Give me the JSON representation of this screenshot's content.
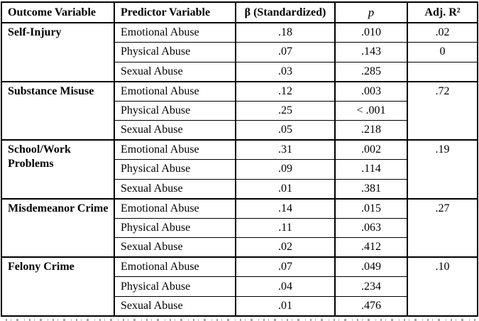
{
  "table": {
    "headers": {
      "outcome": "Outcome Variable",
      "predictor": "Predictor Variable",
      "beta": "β (Standardized)",
      "p": "p",
      "adj_r2": "Adj. R²"
    },
    "sections": [
      {
        "outcome": "Self-Injury",
        "rows": [
          {
            "predictor": "Emotional Abuse",
            "beta": ".18",
            "p": ".010",
            "adj_r2": ".02"
          },
          {
            "predictor": "Physical Abuse",
            "beta": ".07",
            "p": ".143",
            "adj_r2": "0"
          },
          {
            "predictor": "Sexual Abuse",
            "beta": ".03",
            "p": ".285",
            "adj_r2": ""
          }
        ]
      },
      {
        "outcome": "Substance Misuse",
        "adj_r2": ".72",
        "rows": [
          {
            "predictor": "Emotional Abuse",
            "beta": ".12",
            "p": ".003"
          },
          {
            "predictor": "Physical Abuse",
            "beta": ".25",
            "p": "< .001"
          },
          {
            "predictor": "Sexual Abuse",
            "beta": ".05",
            "p": ".218"
          }
        ]
      },
      {
        "outcome": "School/Work Problems",
        "adj_r2": ".19",
        "rows": [
          {
            "predictor": "Emotional Abuse",
            "beta": ".31",
            "p": ".002"
          },
          {
            "predictor": "Physical Abuse",
            "beta": ".09",
            "p": ".114"
          },
          {
            "predictor": "Sexual Abuse",
            "beta": ".01",
            "p": ".381"
          }
        ]
      },
      {
        "outcome": "Misdemeanor Crime",
        "adj_r2": ".27",
        "rows": [
          {
            "predictor": "Emotional Abuse",
            "beta": ".14",
            "p": ".015"
          },
          {
            "predictor": "Physical Abuse",
            "beta": ".11",
            "p": ".063"
          },
          {
            "predictor": "Sexual Abuse",
            "beta": ".02",
            "p": ".412"
          }
        ]
      },
      {
        "outcome": "Felony Crime",
        "adj_r2": ".10",
        "rows": [
          {
            "predictor": "Emotional Abuse",
            "beta": ".07",
            "p": ".049"
          },
          {
            "predictor": "Physical Abuse",
            "beta": ".04",
            "p": ".234"
          },
          {
            "predictor": "Sexual Abuse",
            "beta": ".01",
            "p": ".476"
          }
        ]
      }
    ],
    "colors": {
      "border": "#000000",
      "background": "#ffffff",
      "text": "#000000"
    }
  }
}
